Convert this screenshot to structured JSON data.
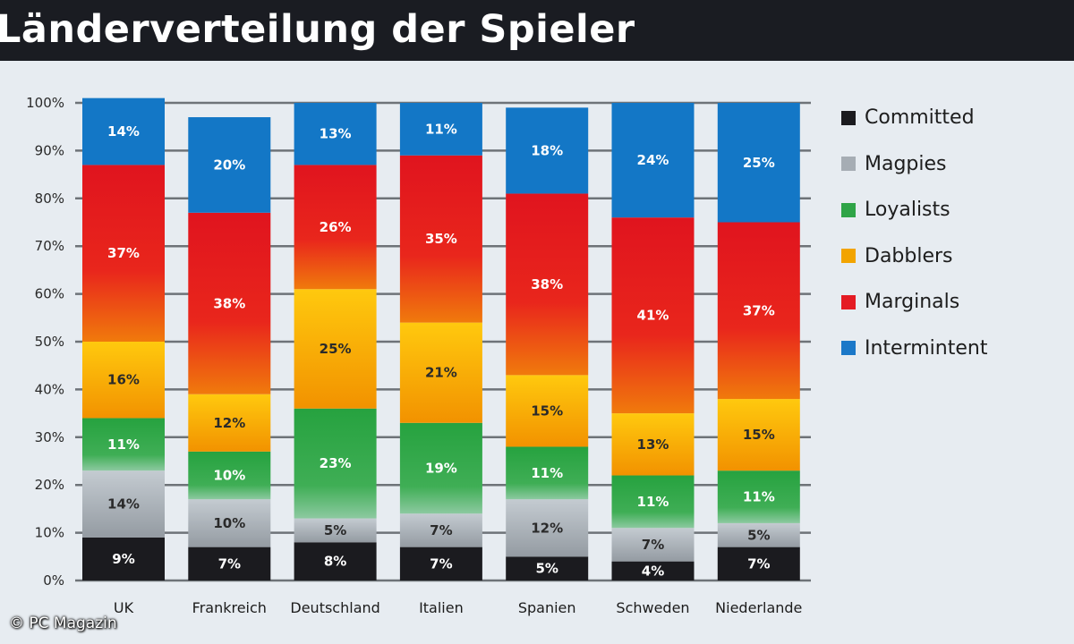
{
  "chart_data": {
    "type": "stacked-bar",
    "title": "Länderverteilung der Spieler",
    "ylabel": "",
    "xlabel": "",
    "ylim": [
      0,
      100
    ],
    "yticks": [
      "0%",
      "10%",
      "20%",
      "30%",
      "40%",
      "50%",
      "60%",
      "70%",
      "80%",
      "90%",
      "100%"
    ],
    "grid": true,
    "categories": [
      "UK",
      "Frankreich",
      "Deutschland",
      "Italien",
      "Spanien",
      "Schweden",
      "Niederlande"
    ],
    "series": [
      {
        "name": "Committed",
        "color": "#1b1b1f",
        "values": [
          9,
          7,
          8,
          7,
          5,
          4,
          7
        ],
        "labels": [
          "9%",
          "7%",
          "8%",
          "7%",
          "5%",
          "4%",
          "7%"
        ]
      },
      {
        "name": "Magpies",
        "color": "#a6adb4",
        "values": [
          14,
          10,
          5,
          7,
          12,
          7,
          5
        ],
        "labels": [
          "14%",
          "10%",
          "5%",
          "7%",
          "12%",
          "7%",
          "5%"
        ]
      },
      {
        "name": "Loyalists",
        "color": "#2fa447",
        "values": [
          11,
          10,
          23,
          19,
          11,
          11,
          11
        ],
        "labels": [
          "11%",
          "10%",
          "23%",
          "19%",
          "11%",
          "11%",
          "11%"
        ]
      },
      {
        "name": "Dabblers",
        "color": "#f2a400",
        "values": [
          16,
          12,
          25,
          21,
          15,
          13,
          15
        ],
        "labels": [
          "16%",
          "12%",
          "25%",
          "21%",
          "15%",
          "13%",
          "15%"
        ]
      },
      {
        "name": "Marginals",
        "color": "#e41b23",
        "values": [
          37,
          38,
          26,
          35,
          38,
          41,
          37
        ],
        "labels": [
          "37%",
          "38%",
          "26%",
          "35%",
          "38%",
          "41%",
          "37%"
        ]
      },
      {
        "name": "Intermintent",
        "color": "#1b78c8",
        "values": [
          14,
          20,
          13,
          11,
          18,
          24,
          25
        ],
        "labels": [
          "14%",
          "20%",
          "13%",
          "11%",
          "18%",
          "24%",
          "25%"
        ]
      }
    ]
  },
  "credit": "© PC Magazin"
}
